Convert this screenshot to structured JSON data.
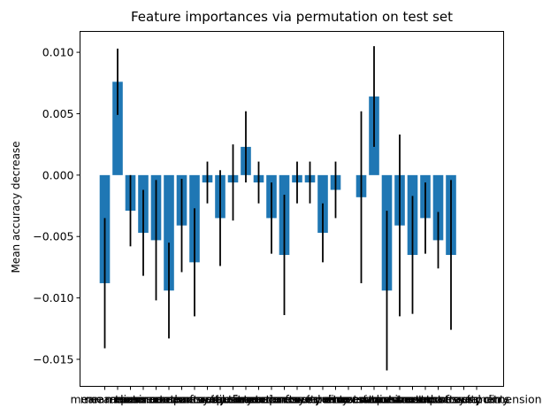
{
  "chart_data": {
    "type": "bar",
    "title": "Feature importances via permutation on test set",
    "xlabel": "",
    "ylabel": "Mean accuracy decrease",
    "ylim": [
      -0.0172,
      0.0117
    ],
    "yticks": [
      0.01,
      0.005,
      0.0,
      -0.005,
      -0.01,
      -0.015
    ],
    "ytick_labels": [
      "0.010",
      "0.005",
      "0.000",
      "−0.005",
      "−0.010",
      "−0.015"
    ],
    "bar_color": "#1f77b4",
    "error_color": "#000000",
    "grid": false,
    "categories": [
      "mean radius",
      "mean texture",
      "mean perimeter",
      "mean area",
      "mean smoothness",
      "mean compactness",
      "mean concavity",
      "mean concave points",
      "mean symmetry",
      "mean fractal dimension",
      "radius error",
      "texture error",
      "perimeter error",
      "area error",
      "smoothness error",
      "compactness error",
      "concavity error",
      "concave points error",
      "symmetry error",
      "fractal dimension error",
      "worst radius",
      "worst texture",
      "worst perimeter",
      "worst area",
      "worst smoothness",
      "worst compactness",
      "worst concavity",
      "worst concave points",
      "worst symmetry",
      "worst fractal dimension"
    ],
    "values": [
      -0.0088,
      0.0076,
      -0.0029,
      -0.0047,
      -0.0053,
      -0.0094,
      -0.0041,
      -0.0071,
      -0.0006,
      -0.0035,
      -0.0006,
      0.0023,
      -0.0006,
      -0.0035,
      -0.0065,
      -0.0006,
      -0.0006,
      -0.0047,
      -0.0012,
      0.0,
      -0.0018,
      0.0064,
      -0.0094,
      -0.0041,
      -0.0065,
      -0.0035,
      -0.0053,
      -0.0065,
      0.0,
      0.0
    ],
    "errors": [
      0.0053,
      0.0027,
      0.0029,
      0.0035,
      0.0049,
      0.0039,
      0.0038,
      0.0044,
      0.0017,
      0.0039,
      0.0031,
      0.0029,
      0.0017,
      0.0029,
      0.0049,
      0.0017,
      0.0017,
      0.0024,
      0.0023,
      0.0,
      0.007,
      0.0041,
      0.0065,
      0.0074,
      0.0048,
      0.0029,
      0.0023,
      0.0061,
      0.0,
      0.0
    ]
  }
}
